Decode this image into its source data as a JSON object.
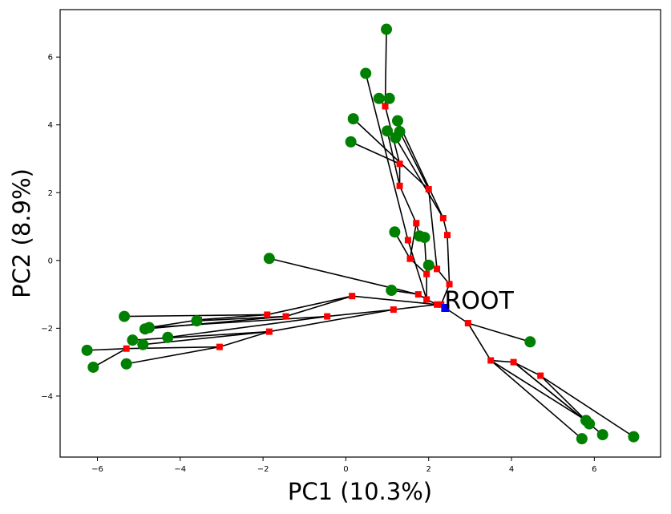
{
  "chart_data": {
    "type": "scatter",
    "title": "",
    "xlabel": "PC1 (10.3%)",
    "ylabel": "PC2 (8.9%)",
    "xlim": [
      -6.9,
      7.6
    ],
    "ylim": [
      -5.8,
      7.4
    ],
    "xticks": [
      -6,
      -4,
      -2,
      0,
      2,
      4,
      6
    ],
    "yticks": [
      -4,
      -2,
      0,
      2,
      4,
      6
    ],
    "grid": false,
    "colors": {
      "leaf": "#008000",
      "internal": "#ff0000",
      "root": "#0000ff",
      "edge": "#000000"
    },
    "root": {
      "label": "ROOT",
      "x": 2.4,
      "y": -1.4
    },
    "internal_nodes": [
      {
        "id": "c1",
        "x": 2.3,
        "y": -1.3
      },
      {
        "id": "c2",
        "x": 2.2,
        "y": -1.3
      },
      {
        "id": "c3",
        "x": 1.95,
        "y": -1.15
      },
      {
        "id": "c4",
        "x": 1.75,
        "y": -1.0
      },
      {
        "id": "c5",
        "x": 2.5,
        "y": -0.7
      },
      {
        "id": "c6",
        "x": 2.2,
        "y": -0.25
      },
      {
        "id": "c7",
        "x": 1.95,
        "y": -0.4
      },
      {
        "id": "c8",
        "x": 2.45,
        "y": 0.75
      },
      {
        "id": "c9",
        "x": 2.35,
        "y": 1.25
      },
      {
        "id": "c10",
        "x": 1.55,
        "y": 0.05
      },
      {
        "id": "c11",
        "x": 1.5,
        "y": 0.6
      },
      {
        "id": "c12",
        "x": 1.7,
        "y": 1.1
      },
      {
        "id": "c13",
        "x": 2.0,
        "y": 2.1
      },
      {
        "id": "c14",
        "x": 1.3,
        "y": 2.2
      },
      {
        "id": "c15",
        "x": 1.3,
        "y": 2.85
      },
      {
        "id": "c16",
        "x": 0.95,
        "y": 4.55
      },
      {
        "id": "a1",
        "x": 1.15,
        "y": -1.45
      },
      {
        "id": "a2",
        "x": 0.15,
        "y": -1.05
      },
      {
        "id": "a3",
        "x": -0.45,
        "y": -1.65
      },
      {
        "id": "a4",
        "x": -1.45,
        "y": -1.65
      },
      {
        "id": "a5",
        "x": -1.9,
        "y": -1.6
      },
      {
        "id": "a6",
        "x": -1.85,
        "y": -2.1
      },
      {
        "id": "a7",
        "x": -3.05,
        "y": -2.55
      },
      {
        "id": "a8",
        "x": -3.55,
        "y": -1.75
      },
      {
        "id": "a9",
        "x": -5.3,
        "y": -2.6
      },
      {
        "id": "b1",
        "x": 2.95,
        "y": -1.85
      },
      {
        "id": "b2",
        "x": 3.5,
        "y": -2.95
      },
      {
        "id": "b3",
        "x": 4.05,
        "y": -3.0
      },
      {
        "id": "b4",
        "x": 4.7,
        "y": -3.4
      }
    ],
    "leaves": [
      {
        "id": "L1",
        "x": 0.98,
        "y": 6.82
      },
      {
        "id": "L2",
        "x": 0.48,
        "y": 5.52
      },
      {
        "id": "L3",
        "x": 0.8,
        "y": 4.78
      },
      {
        "id": "L4",
        "x": 1.05,
        "y": 4.78
      },
      {
        "id": "L5",
        "x": 0.18,
        "y": 4.18
      },
      {
        "id": "L6",
        "x": 1.25,
        "y": 4.12
      },
      {
        "id": "L7",
        "x": 1.0,
        "y": 3.82
      },
      {
        "id": "L8",
        "x": 1.3,
        "y": 3.8
      },
      {
        "id": "L9",
        "x": 1.2,
        "y": 3.62
      },
      {
        "id": "L10",
        "x": 0.12,
        "y": 3.5
      },
      {
        "id": "L11",
        "x": 1.18,
        "y": 0.84
      },
      {
        "id": "L12",
        "x": 1.78,
        "y": 0.72
      },
      {
        "id": "L13",
        "x": 1.9,
        "y": 0.68
      },
      {
        "id": "L14",
        "x": 2.0,
        "y": -0.14
      },
      {
        "id": "L15",
        "x": -1.85,
        "y": 0.06
      },
      {
        "id": "L16",
        "x": 1.1,
        "y": -0.88
      },
      {
        "id": "L17",
        "x": -5.35,
        "y": -1.65
      },
      {
        "id": "L18",
        "x": -3.6,
        "y": -1.78
      },
      {
        "id": "L19",
        "x": -4.75,
        "y": -1.98
      },
      {
        "id": "L20",
        "x": -4.85,
        "y": -2.02
      },
      {
        "id": "L21",
        "x": -4.3,
        "y": -2.27
      },
      {
        "id": "L22",
        "x": -5.15,
        "y": -2.35
      },
      {
        "id": "L23",
        "x": -4.9,
        "y": -2.48
      },
      {
        "id": "L24",
        "x": -6.25,
        "y": -2.65
      },
      {
        "id": "L25",
        "x": -6.1,
        "y": -3.15
      },
      {
        "id": "L26",
        "x": -5.3,
        "y": -3.05
      },
      {
        "id": "L27",
        "x": 4.45,
        "y": -2.4
      },
      {
        "id": "L28",
        "x": 5.8,
        "y": -4.72
      },
      {
        "id": "L29",
        "x": 5.88,
        "y": -4.82
      },
      {
        "id": "L30",
        "x": 6.2,
        "y": -5.14
      },
      {
        "id": "L31",
        "x": 5.7,
        "y": -5.26
      },
      {
        "id": "L32",
        "x": 6.95,
        "y": -5.2
      }
    ],
    "edges": [
      [
        "ROOT",
        "c1"
      ],
      [
        "c1",
        "c2"
      ],
      [
        "c2",
        "c3"
      ],
      [
        "c3",
        "c4"
      ],
      [
        "c4",
        "L16"
      ],
      [
        "c1",
        "c5"
      ],
      [
        "c5",
        "c8"
      ],
      [
        "c8",
        "c9"
      ],
      [
        "c9",
        "L6"
      ],
      [
        "c9",
        "L9"
      ],
      [
        "c5",
        "c6"
      ],
      [
        "c6",
        "L14"
      ],
      [
        "c6",
        "c13"
      ],
      [
        "c13",
        "L8"
      ],
      [
        "c13",
        "L5"
      ],
      [
        "c3",
        "c7"
      ],
      [
        "c7",
        "L13"
      ],
      [
        "c7",
        "c10"
      ],
      [
        "c10",
        "L11"
      ],
      [
        "c10",
        "c12"
      ],
      [
        "c12",
        "L12"
      ],
      [
        "c12",
        "c14"
      ],
      [
        "c14",
        "L7"
      ],
      [
        "c14",
        "c15"
      ],
      [
        "c15",
        "L10"
      ],
      [
        "c15",
        "c16"
      ],
      [
        "c16",
        "L1"
      ],
      [
        "c16",
        "L3"
      ],
      [
        "c16",
        "L4"
      ],
      [
        "c11",
        "L2"
      ],
      [
        "c3",
        "c11"
      ],
      [
        "c2",
        "a2"
      ],
      [
        "a2",
        "a5"
      ],
      [
        "a5",
        "L17"
      ],
      [
        "a2",
        "a4"
      ],
      [
        "a4",
        "L18"
      ],
      [
        "a4",
        "L20"
      ],
      [
        "c2",
        "a1"
      ],
      [
        "a1",
        "a3"
      ],
      [
        "a3",
        "L19"
      ],
      [
        "a3",
        "L21"
      ],
      [
        "a1",
        "a6"
      ],
      [
        "a6",
        "L22"
      ],
      [
        "a6",
        "a7"
      ],
      [
        "a7",
        "a9"
      ],
      [
        "a9",
        "L24"
      ],
      [
        "a7",
        "L26"
      ],
      [
        "a6",
        "L23"
      ],
      [
        "a9",
        "L25"
      ],
      [
        "c4",
        "L15"
      ],
      [
        "a5",
        "a8"
      ],
      [
        "a8",
        "L19"
      ],
      [
        "ROOT",
        "b1"
      ],
      [
        "b1",
        "L27"
      ],
      [
        "b1",
        "b2"
      ],
      [
        "b2",
        "L28"
      ],
      [
        "b2",
        "L31"
      ],
      [
        "b2",
        "b3"
      ],
      [
        "b3",
        "L29"
      ],
      [
        "b3",
        "L30"
      ],
      [
        "b3",
        "b4"
      ],
      [
        "b4",
        "L32"
      ],
      [
        "b4",
        "L28"
      ]
    ]
  }
}
